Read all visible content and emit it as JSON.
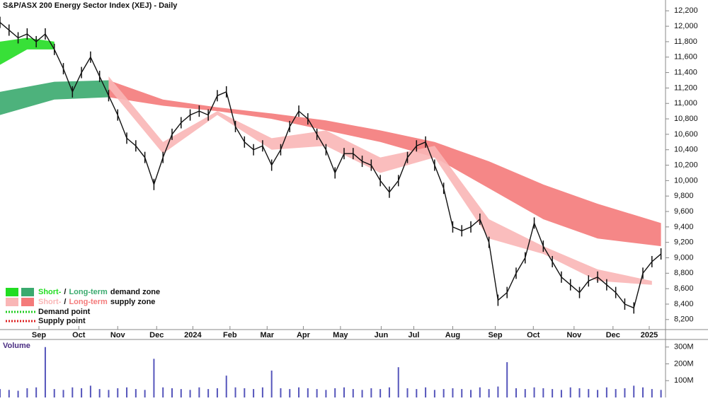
{
  "chart_data": {
    "type": "line",
    "title": "S&P/ASX 200 Energy Sector Index (XEJ) - Daily",
    "x": [
      0,
      1,
      2,
      3,
      4,
      5,
      6,
      7,
      8,
      9,
      10,
      11,
      12,
      13,
      14,
      15,
      16,
      17,
      18,
      19,
      20,
      21,
      22,
      23,
      24,
      25,
      26,
      27,
      28,
      29,
      30,
      31,
      32,
      33,
      34,
      35,
      36,
      37,
      38,
      39,
      40,
      41,
      42,
      43,
      44,
      45,
      46,
      47,
      48,
      49,
      50,
      51,
      52,
      53,
      54,
      55,
      56,
      57,
      58,
      59,
      60,
      61,
      62,
      63,
      64,
      65,
      66,
      67,
      68,
      69,
      70,
      71,
      72,
      73
    ],
    "values": [
      12050,
      11950,
      11850,
      11900,
      11800,
      11900,
      11700,
      11450,
      11150,
      11400,
      11600,
      11350,
      11100,
      10850,
      10550,
      10450,
      10300,
      9950,
      10300,
      10600,
      10750,
      10850,
      10900,
      10850,
      11100,
      11150,
      10700,
      10500,
      10400,
      10450,
      10200,
      10400,
      10700,
      10900,
      10800,
      10600,
      10400,
      10100,
      10350,
      10350,
      10250,
      10200,
      10000,
      9850,
      10000,
      10300,
      10450,
      10500,
      10200,
      9900,
      9400,
      9350,
      9400,
      9500,
      9200,
      8450,
      8550,
      8800,
      9000,
      9450,
      9150,
      8950,
      8750,
      8650,
      8550,
      8700,
      8750,
      8650,
      8550,
      8400,
      8350,
      8800,
      8950,
      9050
    ],
    "color": "#111111",
    "xlim": [
      0,
      73.5
    ],
    "xticks": [
      {
        "value": 4.3,
        "label": "Sep"
      },
      {
        "value": 8.7,
        "label": "Oct"
      },
      {
        "value": 13,
        "label": "Nov"
      },
      {
        "value": 17.3,
        "label": "Dec"
      },
      {
        "value": 21.3,
        "label": "2024"
      },
      {
        "value": 25.4,
        "label": "Feb"
      },
      {
        "value": 29.5,
        "label": "Mar"
      },
      {
        "value": 33.5,
        "label": "Apr"
      },
      {
        "value": 37.6,
        "label": "May"
      },
      {
        "value": 42.1,
        "label": "Jun"
      },
      {
        "value": 45.7,
        "label": "Jul"
      },
      {
        "value": 50,
        "label": "Aug"
      },
      {
        "value": 54.7,
        "label": "Sep"
      },
      {
        "value": 58.9,
        "label": "Oct"
      },
      {
        "value": 63.4,
        "label": "Nov"
      },
      {
        "value": 67.7,
        "label": "Dec"
      },
      {
        "value": 71.7,
        "label": "2025"
      }
    ],
    "ylim": [
      8070,
      12340
    ],
    "yticks": [
      {
        "value": 8200,
        "label": "8,200"
      },
      {
        "value": 8400,
        "label": "8,400"
      },
      {
        "value": 8600,
        "label": "8,600"
      },
      {
        "value": 8800,
        "label": "8,800"
      },
      {
        "value": 9000,
        "label": "9,000"
      },
      {
        "value": 9200,
        "label": "9,200"
      },
      {
        "value": 9400,
        "label": "9,400"
      },
      {
        "value": 9600,
        "label": "9,600"
      },
      {
        "value": 9800,
        "label": "9,800"
      },
      {
        "value": 10000,
        "label": "10,000"
      },
      {
        "value": 10200,
        "label": "10,200"
      },
      {
        "value": 10400,
        "label": "10,400"
      },
      {
        "value": 10600,
        "label": "10,600"
      },
      {
        "value": 10800,
        "label": "10,800"
      },
      {
        "value": 11000,
        "label": "11,000"
      },
      {
        "value": 11200,
        "label": "11,200"
      },
      {
        "value": 11400,
        "label": "11,400"
      },
      {
        "value": 11600,
        "label": "11,600"
      },
      {
        "value": 11800,
        "label": "11,800"
      },
      {
        "value": 12000,
        "label": "12,000"
      },
      {
        "value": 12200,
        "label": "12,200"
      }
    ],
    "zones": [
      {
        "x": [
          0,
          6,
          12
        ],
        "upper": [
          11150,
          11280,
          11300
        ],
        "lower": [
          10850,
          11050,
          11080
        ],
        "color": "#3aaa6e"
      },
      {
        "x": [
          12,
          18,
          24,
          30,
          36,
          42,
          48,
          54,
          60,
          66,
          73
        ],
        "upper": [
          11300,
          11050,
          10950,
          10870,
          10780,
          10650,
          10500,
          10250,
          9950,
          9700,
          9450
        ],
        "lower": [
          11080,
          10970,
          10900,
          10800,
          10650,
          10500,
          10300,
          9900,
          9500,
          9250,
          9150
        ],
        "color": "#f47a7a"
      },
      {
        "x": [
          0,
          3,
          6
        ],
        "upper": [
          11800,
          11850,
          11800
        ],
        "lower": [
          11500,
          11700,
          11700
        ],
        "color": "#22dd22"
      },
      {
        "x": [
          12,
          18,
          24,
          30,
          36,
          42,
          48,
          54,
          60,
          66,
          72
        ],
        "upper": [
          11350,
          10500,
          10900,
          10550,
          10650,
          10300,
          10450,
          9500,
          9150,
          8850,
          8700
        ],
        "lower": [
          11200,
          10350,
          10850,
          10400,
          10450,
          10100,
          10300,
          9250,
          9050,
          8700,
          8650
        ],
        "color": "#f9b6b6"
      }
    ],
    "legend": [
      {
        "colors": [
          "#22dd22",
          "#3aaa6e"
        ],
        "parts": [
          "Short-",
          "/",
          "Long-term",
          "demand zone"
        ]
      },
      {
        "colors": [
          "#f9b6b6",
          "#f47a7a"
        ],
        "parts": [
          "Short-",
          "/",
          "Long-term",
          "supply zone"
        ]
      }
    ],
    "points_legend": [
      {
        "color": "#22cc22",
        "label": "Demand point"
      },
      {
        "color": "#dd2222",
        "label": "Supply point"
      }
    ],
    "volume": {
      "label": "Volume",
      "color": "#5555bb",
      "values": [
        50,
        45,
        40,
        55,
        60,
        300,
        50,
        45,
        60,
        55,
        70,
        50,
        45,
        55,
        60,
        50,
        45,
        230,
        60,
        55,
        50,
        45,
        60,
        50,
        55,
        130,
        60,
        55,
        50,
        60,
        160,
        55,
        50,
        60,
        55,
        50,
        45,
        55,
        60,
        50,
        45,
        55,
        50,
        60,
        180,
        55,
        50,
        60,
        45,
        50,
        55,
        50,
        45,
        60,
        50,
        65,
        210,
        55,
        50,
        60,
        55,
        50,
        45,
        60,
        55,
        50,
        45,
        60,
        50,
        55,
        70,
        60,
        50,
        45
      ],
      "ylim": [
        0,
        345
      ],
      "yticks": [
        {
          "value": 100,
          "label": "100M"
        },
        {
          "value": 200,
          "label": "200M"
        },
        {
          "value": 300,
          "label": "300M"
        }
      ]
    }
  }
}
